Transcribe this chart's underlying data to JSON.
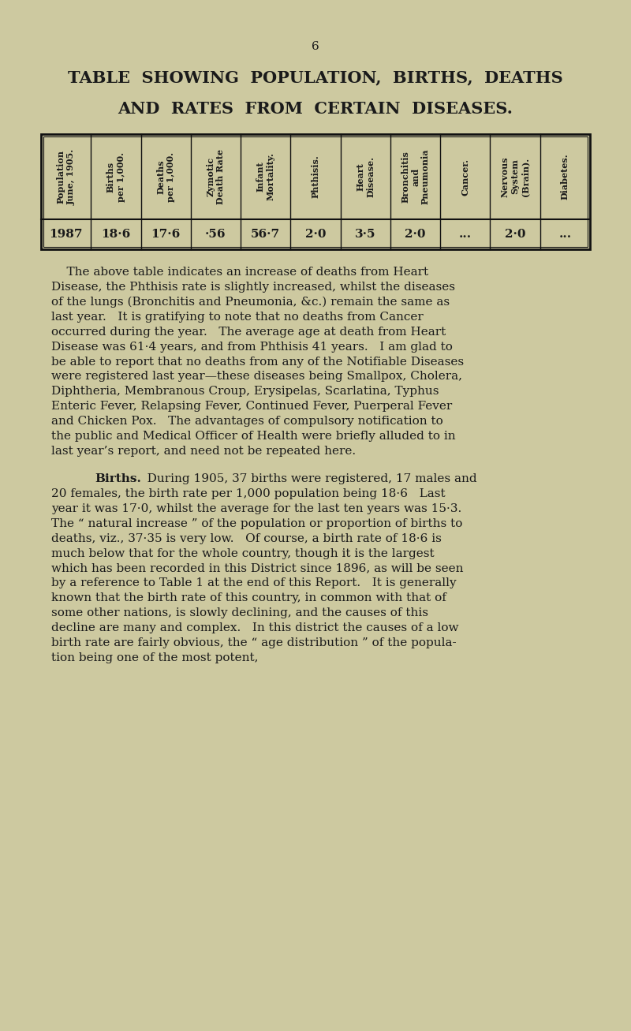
{
  "background_color": "#cdc9a0",
  "page_number": "6",
  "title_line1": "TABLE  SHOWING  POPULATION,  BIRTHS,  DEATHS",
  "title_line2": "AND  RATES  FROM  CERTAIN  DISEASES.",
  "table_headers": [
    "Population\nJune, 1905.",
    "Births\nper 1,000.",
    "Deaths\nper 1,000.",
    "Zymotic\nDeath Rate",
    "Infant\nMortality.",
    "Phthisis.",
    "Heart\nDisease.",
    "Bronchitis\nand\nPneumonia",
    "Cancer.",
    "Nervous\nSystem\n(Brain).",
    "Diabetes."
  ],
  "table_values": [
    "1987",
    "18·6",
    "17·6",
    "·56",
    "56·7",
    "2·0",
    "3·5",
    "2·0",
    "...",
    "2·0",
    "..."
  ],
  "p1_lines": [
    "    The above table indicates an increase of deaths from Heart",
    "Disease, the Phthisis rate is slightly increased, whilst the diseases",
    "of the lungs (Bronchitis and Pneumonia, &c.) remain the same as",
    "last year.   It is gratifying to note that no deaths from Cancer",
    "occurred during the year.   The average age at death from Heart",
    "Disease was 61·4 years, and from Phthisis 41 years.   I am glad to",
    "be able to report that no deaths from any of the Notifiable Diseases",
    "were registered last year—these diseases being Smallpox, Cholera,",
    "Diphtheria, Membranous Croup, Erysipelas, Scarlatina, Typhus",
    "Enteric Fever, Relapsing Fever, Continued Fever, Puerperal Fever",
    "and Chicken Pox.   The advantages of compulsory notification to",
    "the public and Medical Officer of Health were briefly alluded to in",
    "last year’s report, and need not be repeated here."
  ],
  "p2_intro": "Births.",
  "p2_rest": "   During 1905, 37 births were registered, 17 males and",
  "p2_lines": [
    "20 females, the birth rate per 1,000 population being 18·6   Last",
    "year it was 17·0, whilst the average for the last ten years was 15·3.",
    "The “ natural increase ” of the population or proportion of births to",
    "deaths, viz., 37·35 is very low.   Of course, a birth rate of 18·6 is",
    "much below that for the whole country, though it is the largest",
    "which has been recorded in this District since 1896, as will be seen",
    "by a reference to Table 1 at the end of this Report.   It is generally",
    "known that the birth rate of this country, in common with that of",
    "some other nations, is slowly declining, and the causes of this",
    "decline are many and complex.   In this district the causes of a low",
    "birth rate are fairly obvious, the “ age distribution ” of the popula-",
    "tion being one of the most potent,"
  ],
  "text_color": "#1a1a1a",
  "border_color": "#111111",
  "font_size_pagenum": 11,
  "font_size_title": 15,
  "font_size_body": 11,
  "font_size_table_header": 8,
  "font_size_table_data": 11
}
